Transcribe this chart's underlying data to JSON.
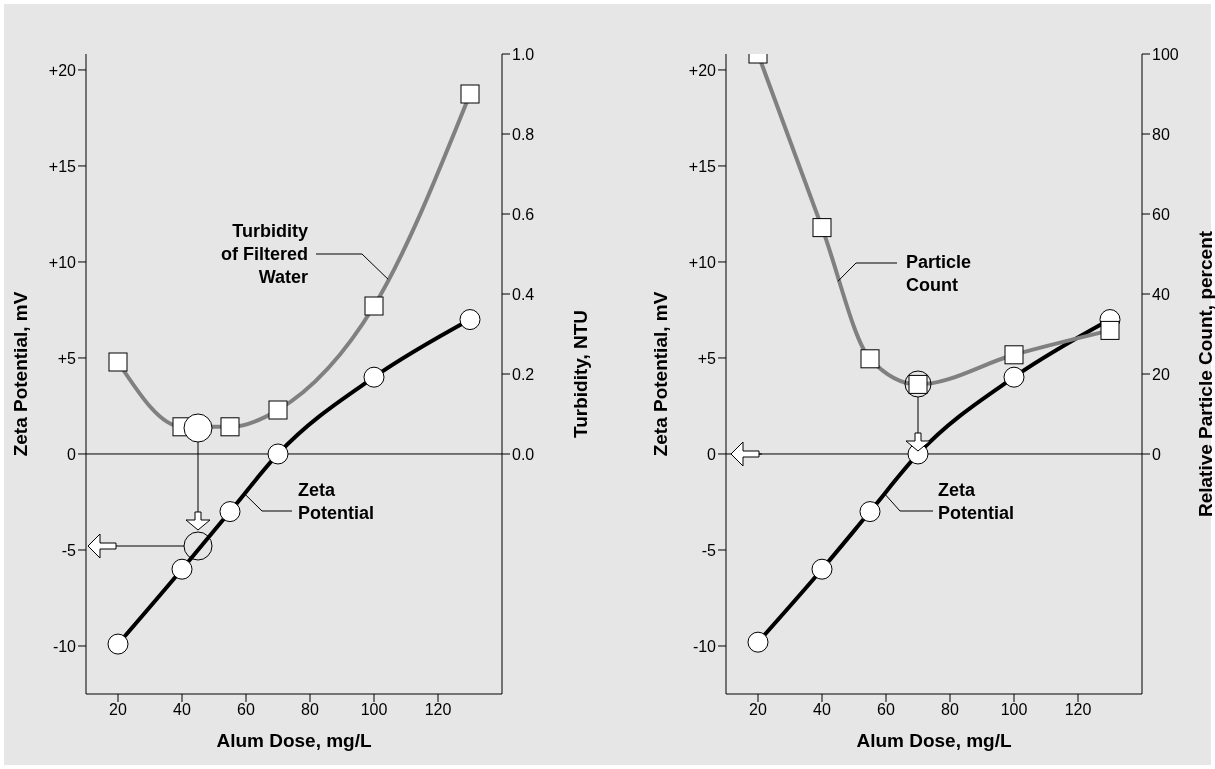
{
  "chart_data": [
    {
      "type": "line",
      "xlabel": "Alum Dose,  mg/L",
      "ylabel": "Zeta Potential, mV",
      "y2label": "Turbidity,  NTU",
      "x": [
        20,
        40,
        55,
        70,
        100,
        130
      ],
      "xlim": [
        10,
        140
      ],
      "xticks": [
        20,
        40,
        60,
        80,
        100,
        120
      ],
      "ylim": [
        -12.5,
        20.83
      ],
      "yticks": [
        {
          "value": -10,
          "label": "-10"
        },
        {
          "value": -5,
          "label": "-5"
        },
        0,
        {
          "value": 5,
          "label": "+5"
        },
        {
          "value": 10,
          "label": "+10"
        },
        {
          "value": 15,
          "label": "+15"
        },
        {
          "value": 20,
          "label": "+20"
        }
      ],
      "y2lim": [
        -0.6,
        1.0
      ],
      "y2ticks": [
        {
          "value": 0,
          "label": "0.0"
        },
        {
          "value": 0.2,
          "label": "0.2"
        },
        {
          "value": 0.4,
          "label": "0.4"
        },
        {
          "value": 0.6,
          "label": "0.6"
        },
        {
          "value": 0.8,
          "label": "0.8"
        },
        {
          "value": 1,
          "label": "1.0"
        }
      ],
      "ref_lines": [
        {
          "axis": "y",
          "value": 0,
          "color": "#000000"
        }
      ],
      "grid": false,
      "legend": false,
      "line_style": "solid",
      "series": [
        {
          "color": "#000000",
          "marker": "circle",
          "values": [
            -9.9,
            -6,
            -3,
            0,
            4,
            7
          ]
        },
        {
          "color": "#808080",
          "marker": "square",
          "axis": "y2",
          "values": [
            0.23,
            0.068,
            0.068,
            0.11,
            0.37,
            0.9
          ]
        }
      ],
      "annotations": [
        {
          "text": "Zeta Potential",
          "x": 59.7,
          "y": -2.1
        },
        {
          "text": "Turbidity of Filtered Water",
          "x": 104.4,
          "y": 9.1
        }
      ]
    },
    {
      "type": "line",
      "xlabel": "Alum Dose,  mg/L",
      "ylabel": "Zeta Potential, mV",
      "y2label": "Relative Particle Count,  percent",
      "x": [
        20,
        40,
        55,
        70,
        100,
        130
      ],
      "xlim": [
        10,
        140
      ],
      "xticks": [
        20,
        40,
        60,
        80,
        100,
        120
      ],
      "ylim": [
        -12.5,
        20.83
      ],
      "yticks": [
        {
          "value": -10,
          "label": "-10"
        },
        {
          "value": -5,
          "label": "-5"
        },
        0,
        {
          "value": 5,
          "label": "+5"
        },
        {
          "value": 10,
          "label": "+10"
        },
        {
          "value": 15,
          "label": "+15"
        },
        {
          "value": 20,
          "label": "+20"
        }
      ],
      "y2lim": [
        -60,
        100
      ],
      "y2ticks": [
        0,
        20,
        40,
        60,
        80,
        100
      ],
      "ref_lines": [
        {
          "axis": "y",
          "value": 0,
          "color": "#000000"
        }
      ],
      "grid": false,
      "legend": false,
      "line_style": "solid",
      "series": [
        {
          "color": "#000000",
          "marker": "circle",
          "values": [
            -9.8,
            -6,
            -3,
            0,
            4,
            7
          ]
        },
        {
          "color": "#808080",
          "marker": "square",
          "axis": "y2",
          "values": [
            100,
            56.6,
            23.8,
            17.4,
            24.8,
            30.9
          ]
        }
      ],
      "annotations": [
        {
          "text": "Zeta Potential",
          "x": 59.7,
          "y": -2.1
        },
        {
          "text": "Particle Count",
          "x": 45,
          "y": 9
        }
      ]
    }
  ]
}
